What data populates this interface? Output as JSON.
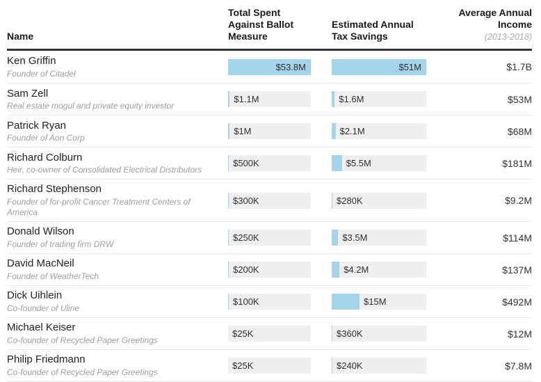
{
  "table": {
    "columns": [
      {
        "label": "Name"
      },
      {
        "label": "Total Spent Against Ballot Measure",
        "max_value_musd": 53.8
      },
      {
        "label": "Estimated Annual Tax Savings",
        "max_value_musd": 51
      },
      {
        "label": "Average Annual Income",
        "note": "(2013-2018)"
      }
    ],
    "rows": [
      {
        "name": "Ken Griffin",
        "description": "Founder of Citadel",
        "spent_label": "$53.8M",
        "spent_musd": 53.8,
        "tax_label": "$51M",
        "tax_musd": 51,
        "income": "$1.7B"
      },
      {
        "name": "Sam Zell",
        "description": "Real estate mogul and private equity investor",
        "spent_label": "$1.1M",
        "spent_musd": 1.1,
        "tax_label": "$1.6M",
        "tax_musd": 1.6,
        "income": "$53M"
      },
      {
        "name": "Patrick Ryan",
        "description": "Founder of Aon Corp",
        "spent_label": "$1M",
        "spent_musd": 1.0,
        "tax_label": "$2.1M",
        "tax_musd": 2.1,
        "income": "$68M"
      },
      {
        "name": "Richard Colburn",
        "description": "Heir, co-owner of Consolidated Electrical Distributors",
        "spent_label": "$500K",
        "spent_musd": 0.5,
        "tax_label": "$5.5M",
        "tax_musd": 5.5,
        "income": "$181M"
      },
      {
        "name": "Richard Stephenson",
        "description": "Founder of for-profit Cancer Treatment Centers of America",
        "spent_label": "$300K",
        "spent_musd": 0.3,
        "tax_label": "$280K",
        "tax_musd": 0.28,
        "income": "$9.2M"
      },
      {
        "name": "Donald Wilson",
        "description": "Founder of trading firm DRW",
        "spent_label": "$250K",
        "spent_musd": 0.25,
        "tax_label": "$3.5M",
        "tax_musd": 3.5,
        "income": "$114M"
      },
      {
        "name": "David MacNeil",
        "description": "Founder of WeatherTech",
        "spent_label": "$200K",
        "spent_musd": 0.2,
        "tax_label": "$4.2M",
        "tax_musd": 4.2,
        "income": "$137M"
      },
      {
        "name": "Dick Uihlein",
        "description": "Co-founder of Uline",
        "spent_label": "$100K",
        "spent_musd": 0.1,
        "tax_label": "$15M",
        "tax_musd": 15,
        "income": "$492M"
      },
      {
        "name": "Michael Keiser",
        "description": "Co-founder of Recycled Paper Greetings",
        "spent_label": "$25K",
        "spent_musd": 0.025,
        "tax_label": "$360K",
        "tax_musd": 0.36,
        "income": "$12M"
      },
      {
        "name": "Philip Friedmann",
        "description": "Co-founder of Recycled Paper Greetings",
        "spent_label": "$25K",
        "spent_musd": 0.025,
        "tax_label": "$240K",
        "tax_musd": 0.24,
        "income": "$7.8M"
      }
    ]
  },
  "colors": {
    "bar_fill": "#a5d3ec",
    "bar_track": "#efefef",
    "header_rule": "#333333",
    "row_rule": "#e8e8e8"
  },
  "chart_data": {
    "type": "bar",
    "title": "",
    "categories": [
      "Ken Griffin",
      "Sam Zell",
      "Patrick Ryan",
      "Richard Colburn",
      "Richard Stephenson",
      "Donald Wilson",
      "David MacNeil",
      "Dick Uihlein",
      "Michael Keiser",
      "Philip Friedmann"
    ],
    "series": [
      {
        "name": "Total Spent Against Ballot Measure ($M)",
        "values": [
          53.8,
          1.1,
          1.0,
          0.5,
          0.3,
          0.25,
          0.2,
          0.1,
          0.025,
          0.025
        ],
        "xlim": [
          0,
          53.8
        ]
      },
      {
        "name": "Estimated Annual Tax Savings ($M)",
        "values": [
          51,
          1.6,
          2.1,
          5.5,
          0.28,
          3.5,
          4.2,
          15,
          0.36,
          0.24
        ],
        "xlim": [
          0,
          51
        ]
      }
    ],
    "data_labels": {
      "spent": [
        "$53.8M",
        "$1.1M",
        "$1M",
        "$500K",
        "$300K",
        "$250K",
        "$200K",
        "$100K",
        "$25K",
        "$25K"
      ],
      "tax_savings": [
        "$51M",
        "$1.6M",
        "$2.1M",
        "$5.5M",
        "$280K",
        "$3.5M",
        "$4.2M",
        "$15M",
        "$360K",
        "$240K"
      ],
      "average_annual_income_2013_2018": [
        "$1.7B",
        "$53M",
        "$68M",
        "$181M",
        "$9.2M",
        "$114M",
        "$137M",
        "$492M",
        "$12M",
        "$7.8M"
      ]
    },
    "orientation": "horizontal",
    "grid": false,
    "legend_position": "column-headers"
  }
}
